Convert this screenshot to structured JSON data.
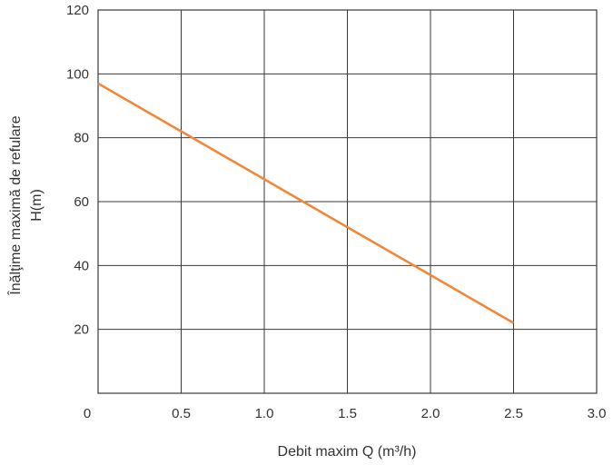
{
  "chart_data": {
    "type": "line",
    "title": "",
    "xlabel": "Debit maxim Q (m³/h)",
    "ylabel_lines": [
      "Înălţime maximă de refulare",
      "H(m)"
    ],
    "xlim": [
      0,
      3.0
    ],
    "ylim": [
      0,
      120
    ],
    "x_ticks": [
      0,
      0.5,
      1.0,
      1.5,
      2.0,
      2.5,
      3.0
    ],
    "x_tick_labels": [
      "0",
      "0.5",
      "1.0",
      "1.5",
      "2.0",
      "2.5",
      "3.0"
    ],
    "y_ticks": [
      20,
      40,
      60,
      80,
      100,
      120
    ],
    "y_tick_labels": [
      "20",
      "40",
      "60",
      "80",
      "100",
      "120"
    ],
    "grid": true,
    "series": [
      {
        "color": "#f0883a",
        "x": [
          0,
          2.5
        ],
        "y": [
          97,
          22
        ]
      }
    ]
  }
}
